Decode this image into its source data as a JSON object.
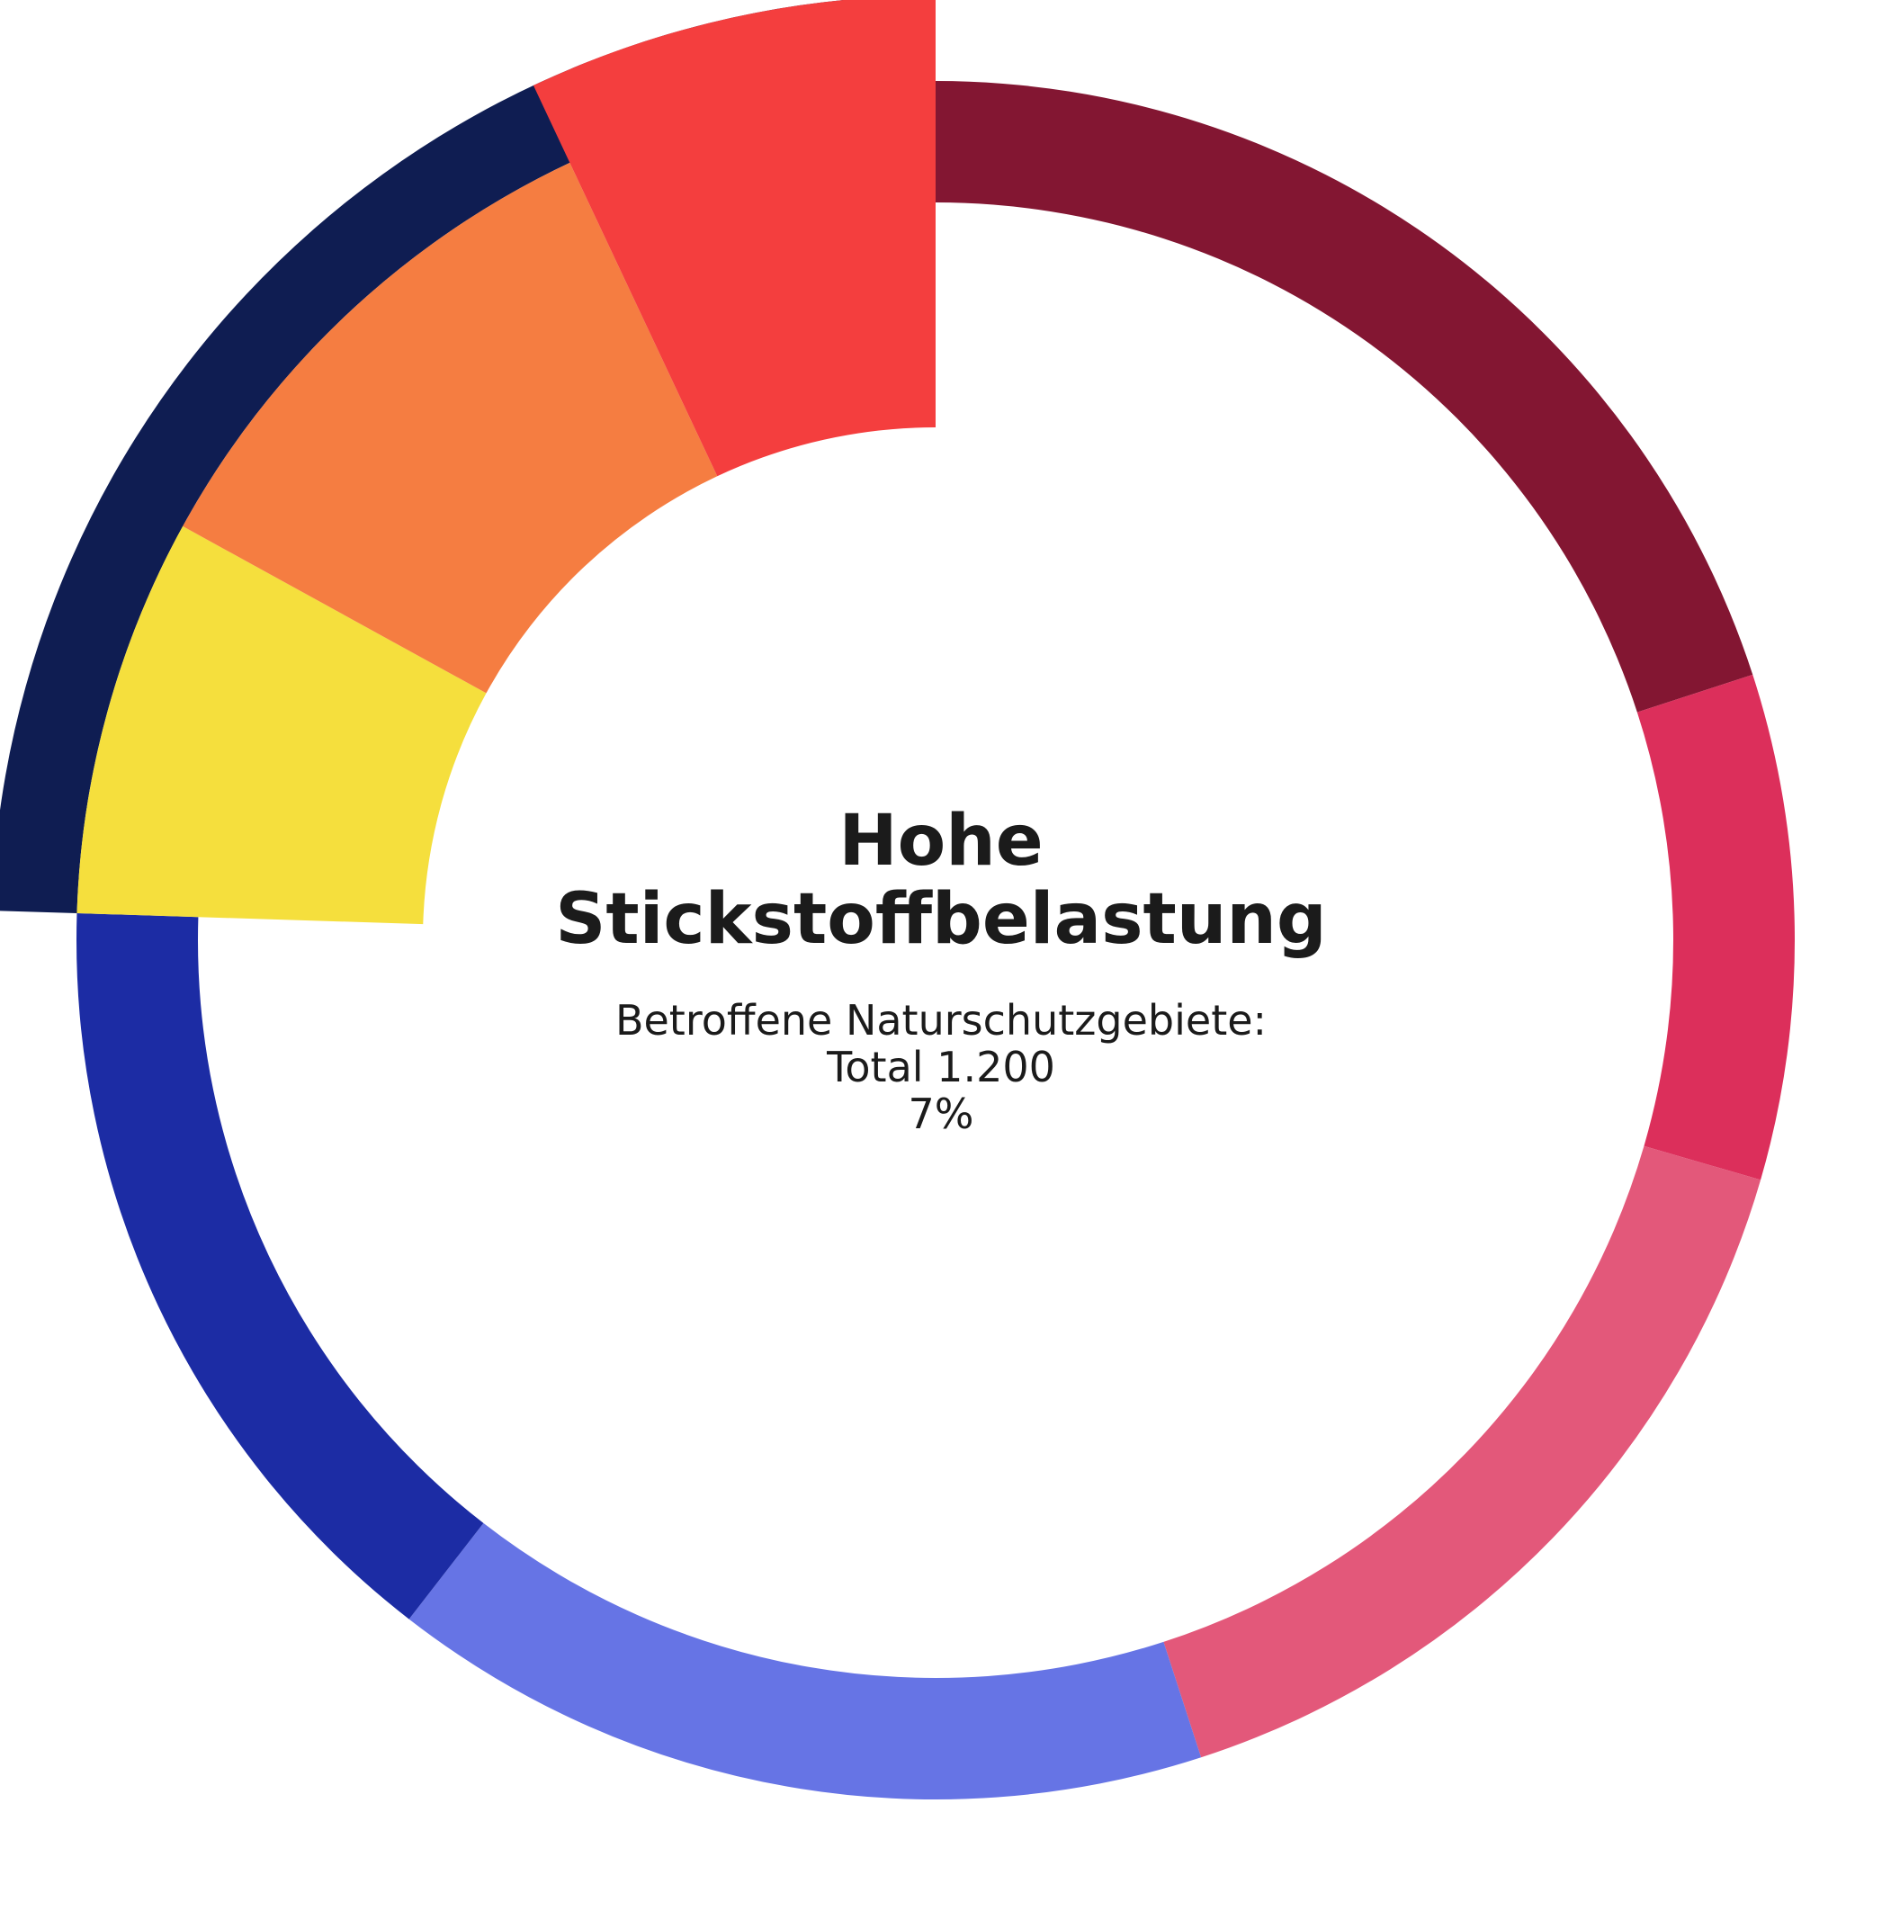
{
  "chart_data": {
    "type": "pie",
    "variant": "donut",
    "start_angle_deg": 0,
    "direction": "clockwise",
    "highlighted_label": "Hohe Stickstoffbelastung",
    "slices": [
      {
        "value": 20,
        "color": "#831632"
      },
      {
        "value": 9.5,
        "color": "#dc2f5b"
      },
      {
        "value": 15.5,
        "color": "#e3587a"
      },
      {
        "value": 15.5,
        "color": "#6674e5"
      },
      {
        "value": 15,
        "color": "#1c2ca4"
      },
      {
        "value": 7.5,
        "color": "#f5df3d"
      },
      {
        "value": 10,
        "color": "#f57d41"
      },
      {
        "value": 7,
        "color": "#f43e3e",
        "label": "Hohe Stickstoffbelastung"
      }
    ],
    "highlight_background_color": "#0f1d52"
  },
  "center": {
    "title_line1": "Hohe",
    "title_line2": "Stickstoffbelastung",
    "subtitle": "Betroffene Naturschutzgebiete:",
    "total": "Total 1.200",
    "percent": "7%"
  }
}
